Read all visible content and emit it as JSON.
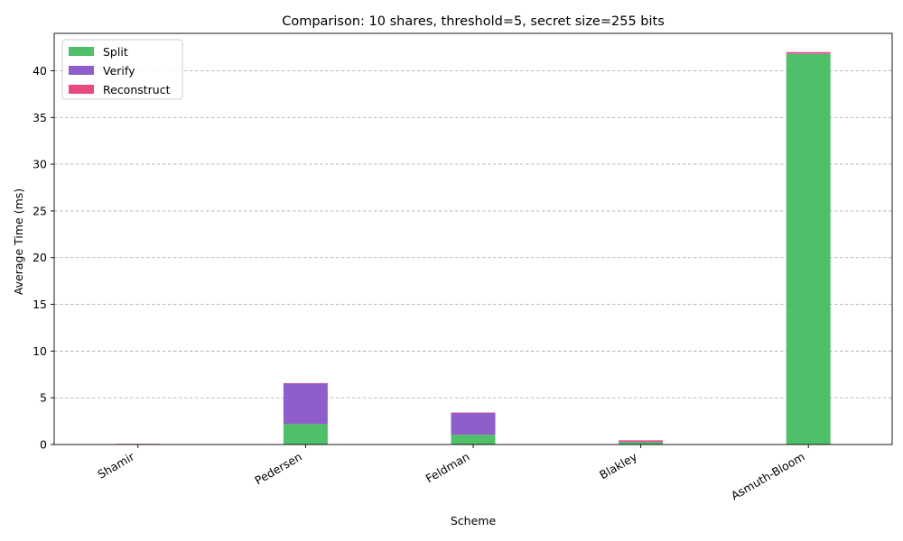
{
  "chart_data": {
    "type": "bar",
    "stacked": true,
    "title": "Comparison: 10 shares, threshold=5, secret size=255 bits",
    "xlabel": "Scheme",
    "ylabel": "Average Time (ms)",
    "categories": [
      "Shamir",
      "Pedersen",
      "Feldman",
      "Blakley",
      "Asmuth-Bloom"
    ],
    "series": [
      {
        "name": "Split",
        "color": "#4fbf6a",
        "values": [
          0.05,
          2.2,
          1.05,
          0.25,
          41.8
        ]
      },
      {
        "name": "Verify",
        "color": "#8e5ecb",
        "values": [
          0.0,
          4.35,
          2.35,
          0.05,
          0.05
        ]
      },
      {
        "name": "Reconstruct",
        "color": "#e84a7f",
        "values": [
          0.02,
          0.02,
          0.02,
          0.15,
          0.15
        ]
      }
    ],
    "ylim": [
      0,
      44
    ],
    "yticks": [
      0,
      5,
      10,
      15,
      20,
      25,
      30,
      35,
      40
    ],
    "grid": "y-dashed",
    "legend": "top-left"
  }
}
